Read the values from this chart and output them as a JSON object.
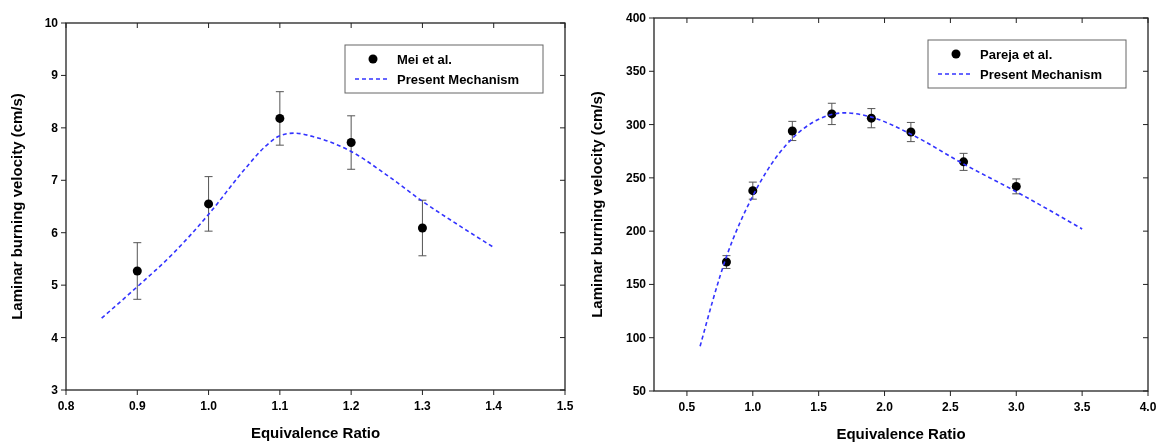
{
  "chart_data": [
    {
      "type": "scatter",
      "xlabel": "Equivalence Ratio",
      "ylabel": "Laminar burning velocity (cm/s)",
      "xlim": [
        0.8,
        1.5
      ],
      "ylim": [
        3,
        10
      ],
      "xticks": [
        0.8,
        0.9,
        {
          "value": 1,
          "label": "1.0"
        },
        1.1,
        1.2,
        1.3,
        1.4,
        1.5
      ],
      "yticks": [
        3,
        4,
        5,
        6,
        7,
        8,
        9,
        10
      ],
      "legend": "top right",
      "series": [
        {
          "name": "Mei et al.",
          "marker": "circle",
          "color": "#000000",
          "x": [
            0.9,
            1.0,
            1.1,
            1.2,
            1.3
          ],
          "values": [
            5.27,
            6.55,
            8.18,
            7.72,
            6.09
          ],
          "errors": [
            0.54,
            0.52,
            0.51,
            0.51,
            0.53
          ]
        },
        {
          "name": "Present Mechanism",
          "type": "line",
          "line_style": "dashed",
          "color": "#3333ff",
          "x": [
            0.85,
            0.9,
            0.95,
            1.0,
            1.05,
            1.08,
            1.1,
            1.12,
            1.15,
            1.2,
            1.25,
            1.3,
            1.35,
            1.4
          ],
          "values": [
            4.37,
            4.97,
            5.6,
            6.35,
            7.2,
            7.65,
            7.85,
            7.9,
            7.82,
            7.55,
            7.1,
            6.6,
            6.15,
            5.72
          ]
        }
      ]
    },
    {
      "type": "scatter",
      "xlabel": "Equivalence Ratio",
      "ylabel": "Laminar burning velocity (cm/s)",
      "xlim": [
        0.25,
        4.0
      ],
      "ylim": [
        50,
        400
      ],
      "xticks": [
        0.5,
        {
          "value": 1,
          "label": "1.0"
        },
        1.5,
        {
          "value": 2,
          "label": "2.0"
        },
        2.5,
        {
          "value": 3,
          "label": "3.0"
        },
        3.5,
        {
          "value": 4,
          "label": "4.0"
        }
      ],
      "yticks": [
        50,
        100,
        150,
        200,
        250,
        300,
        350,
        400
      ],
      "legend": "top right",
      "series": [
        {
          "name": "Pareja et al.",
          "marker": "circle",
          "color": "#000000",
          "x": [
            0.8,
            1.0,
            1.3,
            1.6,
            1.9,
            2.2,
            2.6,
            3.0
          ],
          "values": [
            171,
            238,
            294,
            310,
            306,
            293,
            265,
            242
          ],
          "errors": [
            6,
            8,
            9,
            10,
            9,
            9,
            8,
            7
          ]
        },
        {
          "name": "Present Mechanism",
          "type": "line",
          "line_style": "dashed",
          "color": "#3333ff",
          "x": [
            0.6,
            0.8,
            1.0,
            1.2,
            1.3,
            1.5,
            1.7,
            1.9,
            2.2,
            2.6,
            3.0,
            3.5
          ],
          "values": [
            92,
            176,
            233,
            273,
            287,
            305,
            311,
            307,
            291,
            263,
            237,
            202
          ]
        }
      ]
    }
  ]
}
